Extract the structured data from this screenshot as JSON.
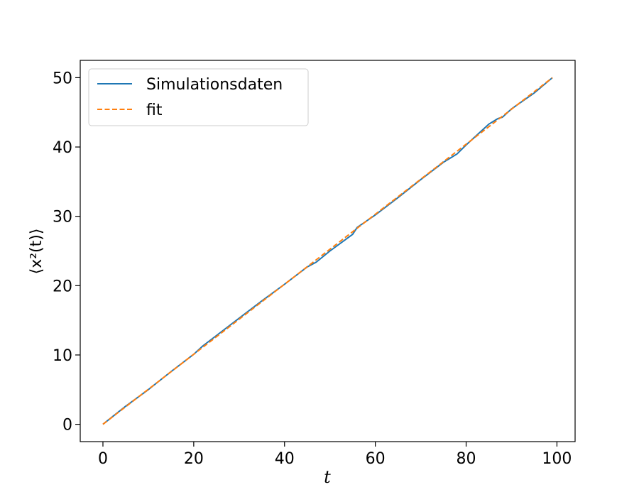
{
  "chart_data": {
    "type": "line",
    "title": "",
    "xlabel": "t",
    "ylabel": "⟨x²(t)⟩",
    "xlim": [
      -5,
      104
    ],
    "ylim": [
      -2.5,
      52.5
    ],
    "xticks": [
      0,
      20,
      40,
      60,
      80,
      100
    ],
    "yticks": [
      0,
      10,
      20,
      30,
      40,
      50
    ],
    "grid": false,
    "legend_position": "top-left",
    "series": [
      {
        "name": "Simulationsdaten",
        "style": "solid",
        "color": "#1f77b4",
        "x": [
          0,
          5,
          10,
          15,
          20,
          22,
          25,
          30,
          35,
          40,
          45,
          47,
          50,
          55,
          56,
          60,
          65,
          70,
          75,
          78,
          80,
          85,
          87,
          88,
          90,
          95,
          99
        ],
        "y": [
          0,
          2.6,
          5.0,
          7.6,
          10.1,
          11.3,
          12.8,
          15.3,
          17.8,
          20.2,
          22.7,
          23.4,
          25.0,
          27.4,
          28.4,
          30.2,
          32.7,
          35.3,
          37.8,
          39.0,
          40.3,
          43.3,
          44.1,
          44.3,
          45.5,
          47.8,
          50.0
        ]
      },
      {
        "name": "fit",
        "style": "dashed",
        "color": "#ff7f0e",
        "x": [
          0,
          99
        ],
        "y": [
          0,
          50.0
        ]
      }
    ]
  }
}
